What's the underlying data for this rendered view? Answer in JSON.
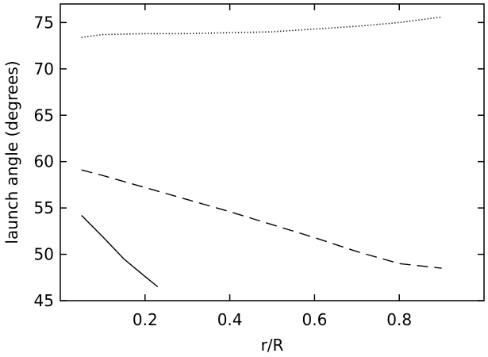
{
  "chart_data": {
    "type": "line",
    "title": "",
    "xlabel": "r/R",
    "ylabel": "launch angle (degrees)",
    "xlim": [
      0.0,
      1.0
    ],
    "ylim": [
      45,
      77
    ],
    "grid": false,
    "legend": "none",
    "x_ticks": [
      0.2,
      0.4,
      0.6,
      0.8
    ],
    "x_tick_labels": [
      "0.2",
      "0.4",
      "0.6",
      "0.8"
    ],
    "y_ticks": [
      45,
      50,
      55,
      60,
      65,
      70,
      75
    ],
    "y_tick_labels": [
      "45",
      "50",
      "55",
      "60",
      "65",
      "70",
      "75"
    ],
    "series": [
      {
        "style": "dotted",
        "x": [
          0.05,
          0.1,
          0.2,
          0.3,
          0.4,
          0.5,
          0.6,
          0.7,
          0.8,
          0.9
        ],
        "y": [
          73.4,
          73.7,
          73.8,
          73.8,
          73.9,
          74.0,
          74.3,
          74.6,
          75.0,
          75.6
        ]
      },
      {
        "style": "dashed",
        "x": [
          0.05,
          0.1,
          0.2,
          0.3,
          0.4,
          0.5,
          0.6,
          0.7,
          0.8,
          0.9
        ],
        "y": [
          59.1,
          58.5,
          57.2,
          55.9,
          54.6,
          53.2,
          51.8,
          50.3,
          49.0,
          48.5
        ]
      },
      {
        "style": "solid",
        "x": [
          0.05,
          0.1,
          0.15,
          0.2,
          0.23
        ],
        "y": [
          54.2,
          51.9,
          49.5,
          47.6,
          46.5
        ]
      }
    ]
  }
}
